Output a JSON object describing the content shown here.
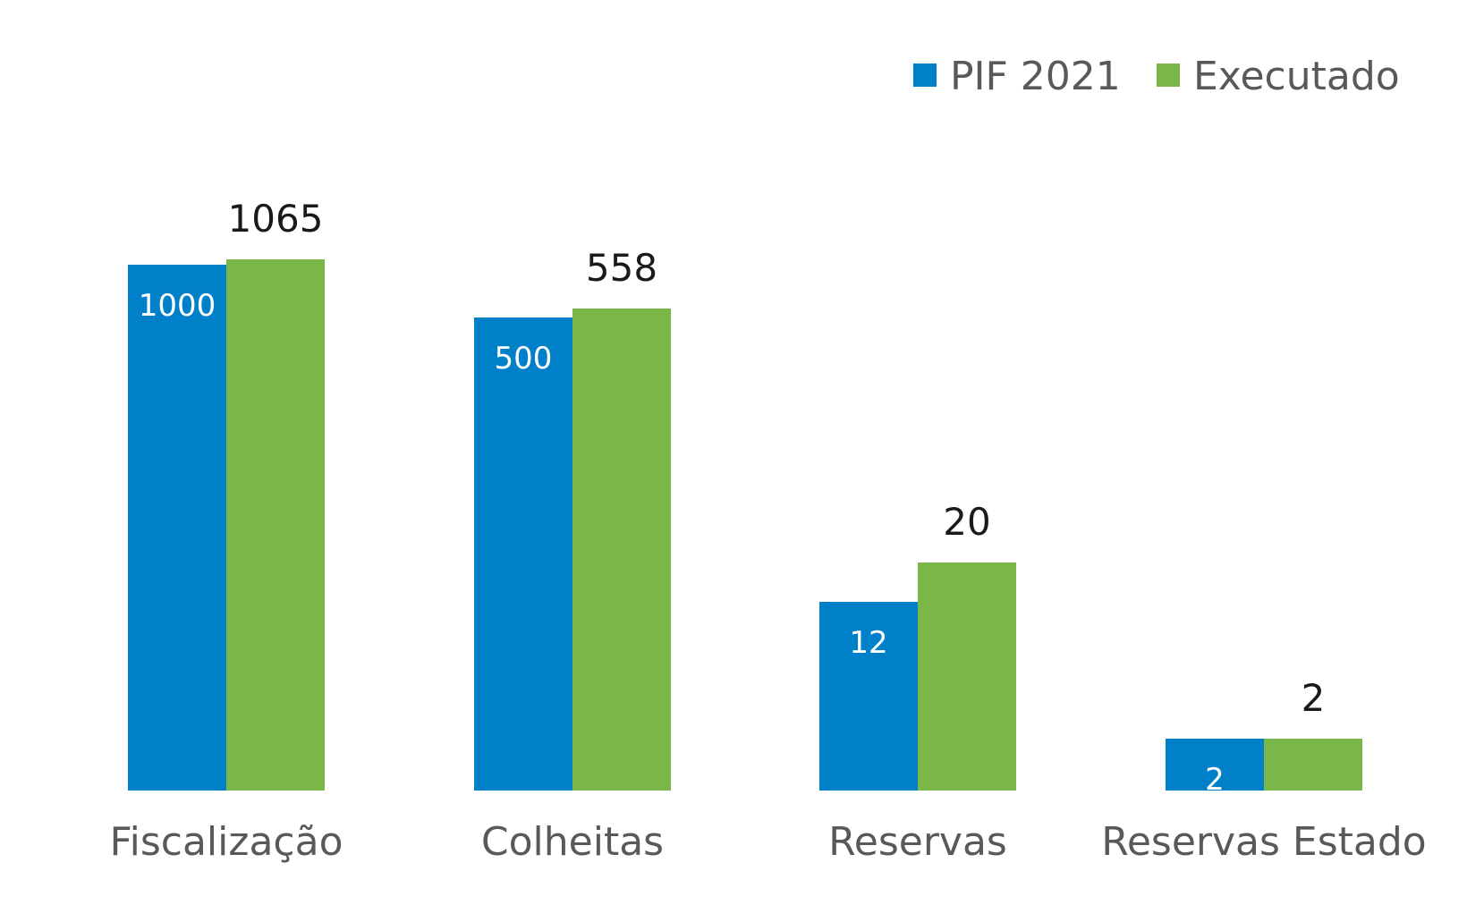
{
  "chart_data": {
    "type": "bar",
    "title": "",
    "xlabel": "",
    "ylabel": "",
    "categories": [
      "Fiscalização",
      "Colheitas",
      "Reservas",
      "Reservas Estado"
    ],
    "series": [
      {
        "name": "PIF 2021",
        "color": "#0080C8",
        "values": [
          1000,
          500,
          12,
          2
        ],
        "labels": [
          "1000",
          "500",
          "12",
          "2"
        ],
        "label_position": "inside"
      },
      {
        "name": "Executado",
        "color": "#7AB648",
        "values": [
          1065,
          558,
          20,
          2
        ],
        "labels": [
          "1065",
          "558",
          "20",
          "2"
        ],
        "label_position": "outside"
      }
    ],
    "grid": false,
    "legend": "top-right",
    "axis_scale": "non-linear (bar heights not proportional to values)"
  }
}
